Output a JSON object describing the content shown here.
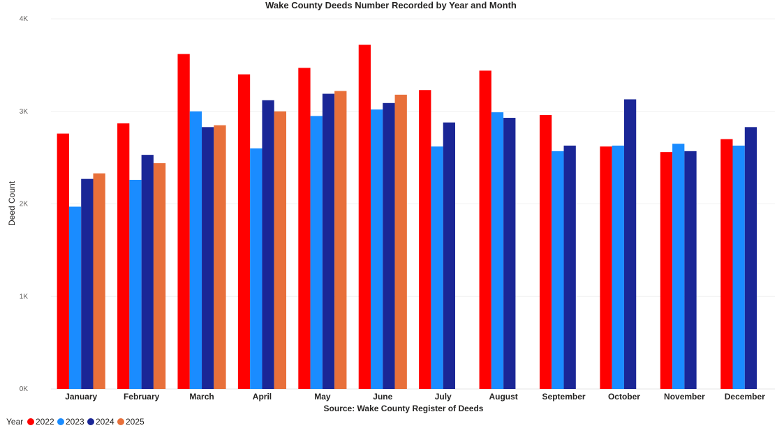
{
  "chart_data": {
    "type": "bar",
    "title": "Wake County Deeds Number Recorded by Year and Month",
    "xlabel": "Source: Wake County Register of Deeds",
    "ylabel": "Deed Count",
    "ylim": [
      0,
      4000
    ],
    "yticks": [
      0,
      1000,
      2000,
      3000,
      4000
    ],
    "ytick_labels": [
      "0K",
      "1K",
      "2K",
      "3K",
      "4K"
    ],
    "grid": true,
    "legend_title": "Year",
    "legend_position": "bottom-left",
    "categories": [
      "January",
      "February",
      "March",
      "April",
      "May",
      "June",
      "July",
      "August",
      "September",
      "October",
      "November",
      "December"
    ],
    "series": [
      {
        "name": "2022",
        "color": "#ff0000",
        "values": [
          2760,
          2870,
          3620,
          3400,
          3470,
          3720,
          3230,
          3440,
          2960,
          2620,
          2560,
          2700
        ]
      },
      {
        "name": "2023",
        "color": "#1a8cff",
        "values": [
          1970,
          2260,
          3000,
          2600,
          2950,
          3020,
          2620,
          2990,
          2570,
          2630,
          2650,
          2630
        ]
      },
      {
        "name": "2024",
        "color": "#1a2696",
        "values": [
          2270,
          2530,
          2830,
          3120,
          3190,
          3090,
          2880,
          2930,
          2630,
          3130,
          2570,
          2830
        ]
      },
      {
        "name": "2025",
        "color": "#e8703a",
        "values": [
          2330,
          2440,
          2850,
          3000,
          3220,
          3180,
          null,
          null,
          null,
          null,
          null,
          null
        ]
      }
    ]
  }
}
